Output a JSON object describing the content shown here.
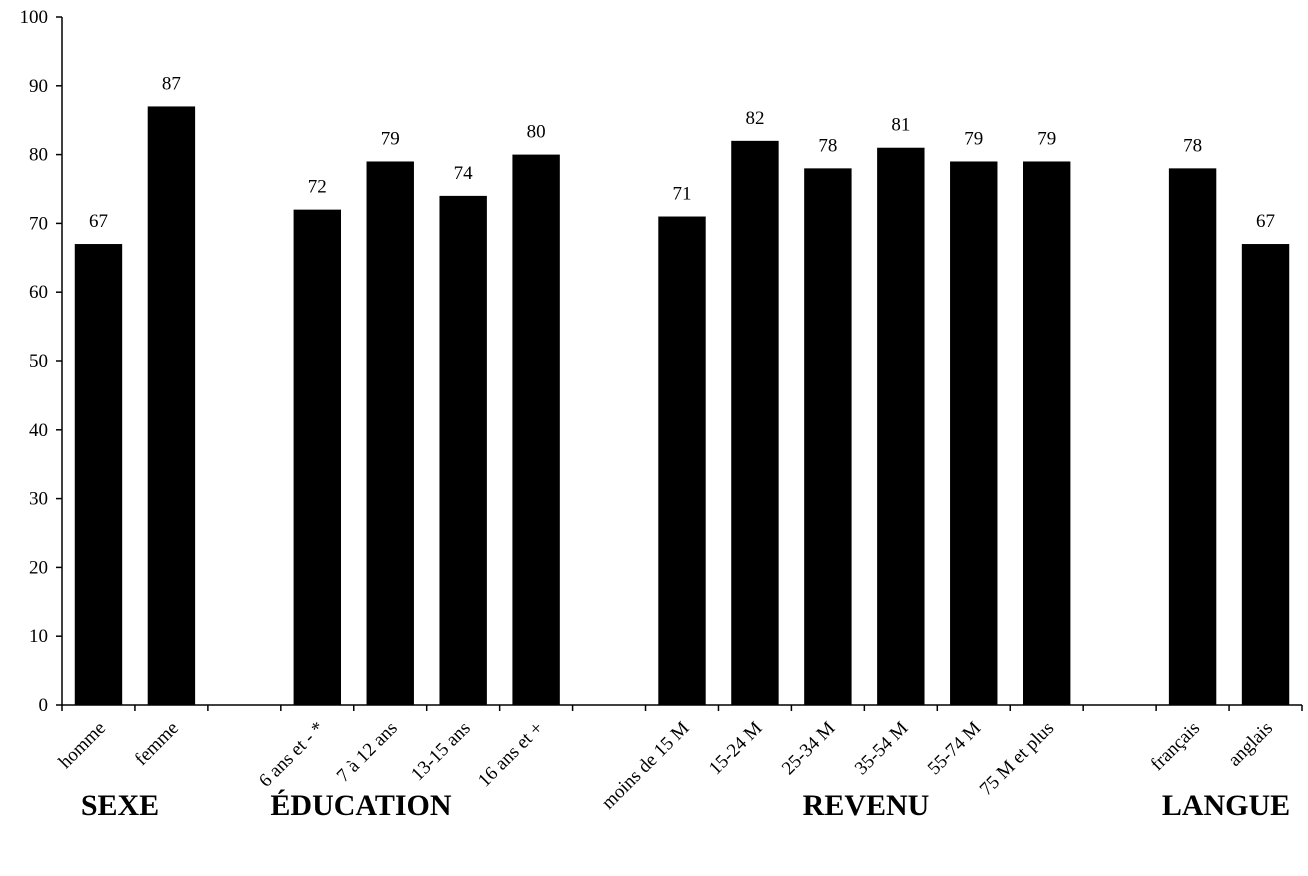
{
  "chart_data": {
    "type": "bar",
    "title": "",
    "xlabel": "",
    "ylabel": "",
    "ylim": [
      0,
      100
    ],
    "yticks": [
      0,
      10,
      20,
      30,
      40,
      50,
      60,
      70,
      80,
      90,
      100
    ],
    "grid": false,
    "legend": "none",
    "bar_color": "#000000",
    "data_labels": true,
    "categories": [
      "homme",
      "femme",
      "",
      "6 ans et - *",
      "7 à 12 ans",
      "13-15 ans",
      "16 ans et +",
      "",
      "moins de 15 M",
      "15-24 M",
      "25-34 M",
      "35-54 M",
      "55-74 M",
      "75 M et plus",
      "",
      "français",
      "anglais"
    ],
    "values": [
      67,
      87,
      null,
      72,
      79,
      74,
      80,
      null,
      71,
      82,
      78,
      81,
      79,
      79,
      null,
      78,
      67
    ],
    "groups": [
      {
        "label": "SEXE",
        "categories": [
          "homme",
          "femme"
        ]
      },
      {
        "label": "ÉDUCATION",
        "categories": [
          "6 ans et - *",
          "7 à 12 ans",
          "13-15 ans",
          "16 ans et +"
        ]
      },
      {
        "label": "REVENU",
        "categories": [
          "moins de 15 M",
          "15-24 M",
          "25-34 M",
          "35-54 M",
          "55-74 M",
          "75 M et plus"
        ]
      },
      {
        "label": "LANGUE",
        "categories": [
          "français",
          "anglais"
        ]
      }
    ]
  }
}
